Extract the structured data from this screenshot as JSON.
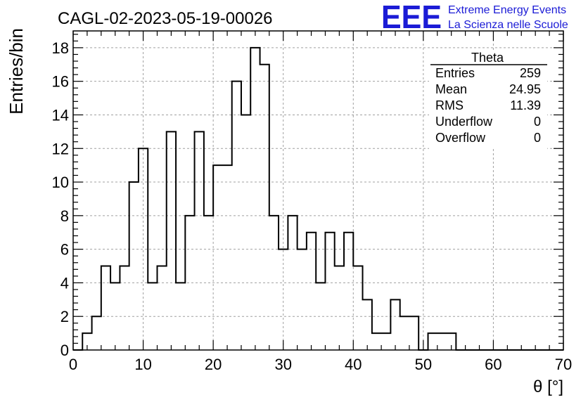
{
  "header": {
    "run_title": "CAGL-02-2023-05-19-00026",
    "logo_text": "EEE",
    "logo_line1": "Extreme Energy Events",
    "logo_line2": "La Scienza nelle Scuole",
    "logo_color": "#1b1bd6"
  },
  "stats_box": {
    "title": "Theta",
    "rows": [
      {
        "label": "Entries",
        "value": "259"
      },
      {
        "label": "Mean",
        "value": "24.95"
      },
      {
        "label": "RMS",
        "value": "11.39"
      },
      {
        "label": "Underflow",
        "value": "0"
      },
      {
        "label": "Overflow",
        "value": "0"
      }
    ]
  },
  "chart_data": {
    "type": "histogram",
    "xlabel": "θ [°]",
    "ylabel": "Entries/bin",
    "xlim": [
      0,
      70
    ],
    "ylim": [
      0,
      19
    ],
    "grid": true,
    "bin_width": 1.3333,
    "x_ticks": [
      0,
      10,
      20,
      30,
      40,
      50,
      60,
      70
    ],
    "y_ticks": [
      0,
      2,
      4,
      6,
      8,
      10,
      12,
      14,
      16,
      18
    ],
    "bin_edges": [
      0,
      1.33,
      2.67,
      4.0,
      5.33,
      6.67,
      8.0,
      9.33,
      10.67,
      12.0,
      13.33,
      14.67,
      16.0,
      17.33,
      18.67,
      20.0,
      21.33,
      22.67,
      24.0,
      25.33,
      26.67,
      28.0,
      29.33,
      30.67,
      32.0,
      33.33,
      34.67,
      36.0,
      37.33,
      38.67,
      40.0,
      41.33,
      42.67,
      44.0,
      45.33,
      46.67,
      48.0,
      49.33,
      50.67,
      52.0,
      53.33,
      54.67,
      56.0,
      57.33,
      58.67,
      60.0,
      61.33,
      62.67,
      64.0,
      65.33,
      66.67,
      68.0,
      69.33,
      70.67
    ],
    "counts": [
      0,
      1,
      2,
      5,
      4,
      5,
      10,
      12,
      4,
      5,
      13,
      4,
      8,
      13,
      8,
      11,
      11,
      16,
      14,
      18,
      17,
      8,
      6,
      8,
      6,
      7,
      4,
      7,
      5,
      7,
      5,
      3,
      1,
      1,
      3,
      2,
      2,
      0,
      1,
      1,
      1,
      0,
      0,
      0,
      0,
      0,
      0,
      0,
      0,
      0,
      0,
      0,
      0
    ],
    "line_color": "#000000"
  }
}
